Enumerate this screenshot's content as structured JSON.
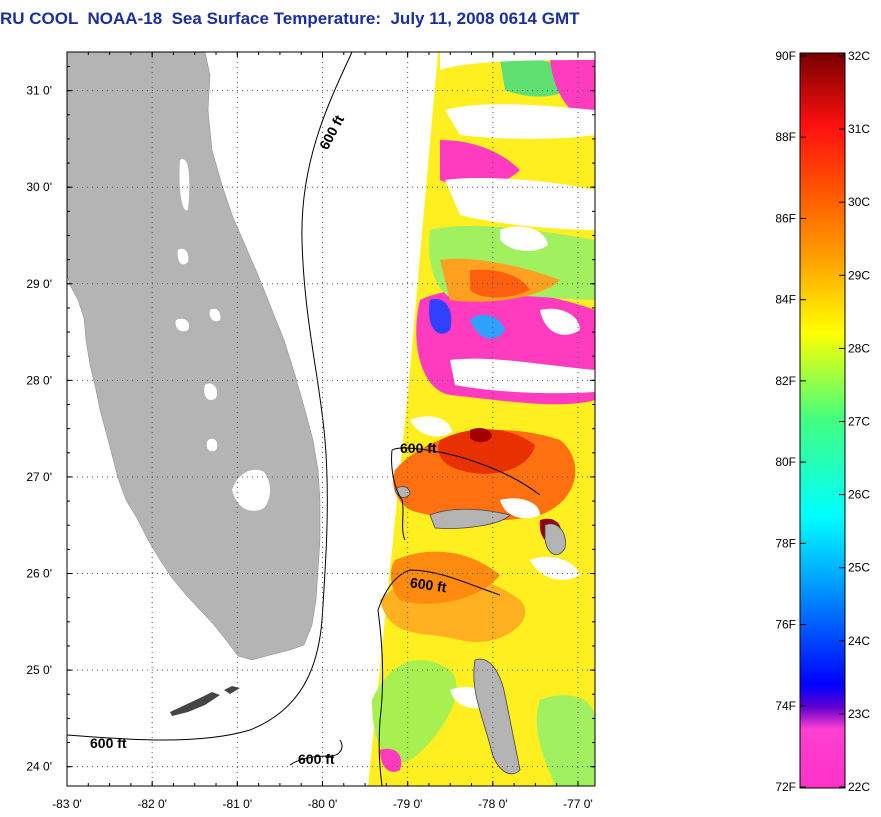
{
  "title": "RU COOL  NOAA-18  Sea Surface Temperature:  July 11, 2008 0614 GMT",
  "map": {
    "lon_range": [
      -83,
      -76.8
    ],
    "lat_range": [
      23.8,
      31.4
    ],
    "grid": "dotted",
    "x_ticks": [
      "-83 0'",
      "-82 0'",
      "-81 0'",
      "-80 0'",
      "-79 0'",
      "-78 0'",
      "-77 0'"
    ],
    "y_ticks": [
      "31 0'",
      "30 0'",
      "29 0'",
      "28 0'",
      "27 0'",
      "26 0'",
      "25 0'",
      "24 0'"
    ],
    "land_color": "#b4b4b4",
    "contour_label": "600 ft",
    "contour_labels": [
      "600 ft",
      "600 ft",
      "600 ft",
      "600 ft",
      "600 ft"
    ]
  },
  "colorbar": {
    "f_labels": [
      "90F",
      "88F",
      "86F",
      "84F",
      "82F",
      "80F",
      "78F",
      "76F",
      "74F",
      "72F"
    ],
    "c_labels": [
      "32C",
      "31C",
      "30C",
      "29C",
      "28C",
      "27C",
      "26C",
      "25C",
      "24C",
      "23C",
      "22C"
    ],
    "colors": [
      "#ff30c8",
      "#6000d0",
      "#0000ff",
      "#00a0ff",
      "#00ffff",
      "#40ff80",
      "#ffff00",
      "#ff9000",
      "#ff2000",
      "#7a0000"
    ]
  }
}
